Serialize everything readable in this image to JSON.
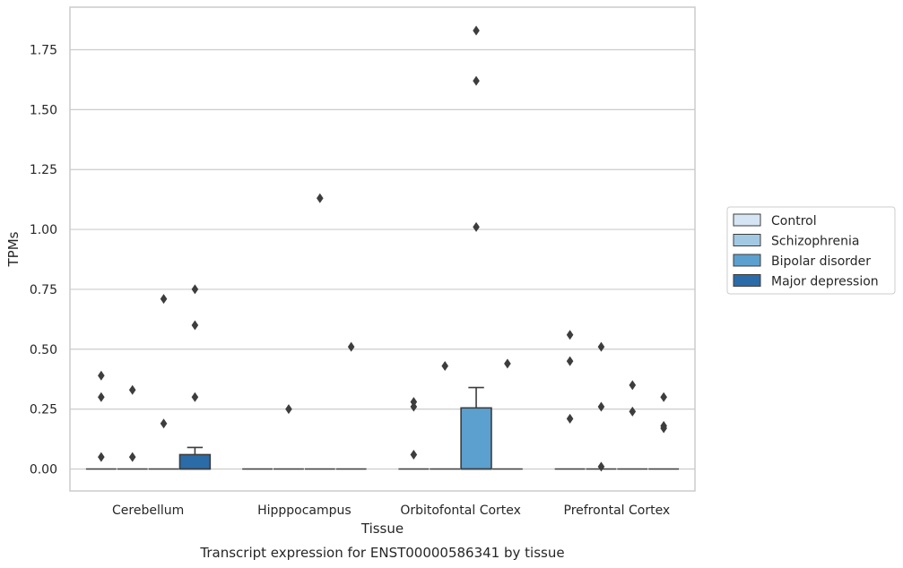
{
  "chart_data": {
    "type": "box",
    "caption": "Transcript expression for ENST00000586341 by tissue",
    "xlabel": "Tissue",
    "ylabel": "TPMs",
    "ylim": [
      -0.09,
      1.92
    ],
    "yticks": [
      0.0,
      0.25,
      0.5,
      0.75,
      1.0,
      1.25,
      1.5,
      1.75
    ],
    "ytick_labels": [
      "0.00",
      "0.25",
      "0.50",
      "0.75",
      "1.00",
      "1.25",
      "1.50",
      "1.75"
    ],
    "grid": "horizontal",
    "legend_position": "right",
    "categories": [
      "Cerebellum",
      "Hipppocampus",
      "Orbitofontal Cortex",
      "Prefrontal Cortex"
    ],
    "series": [
      {
        "name": "Control",
        "color": "#d6e5f4",
        "boxes": [
          {
            "q1": 0,
            "median": 0,
            "q3": 0,
            "whisker_low": 0,
            "whisker_high": 0,
            "outliers": [
              0.39,
              0.3,
              0.05
            ]
          },
          {
            "q1": 0,
            "median": 0,
            "q3": 0,
            "whisker_low": 0,
            "whisker_high": 0,
            "outliers": []
          },
          {
            "q1": 0,
            "median": 0,
            "q3": 0,
            "whisker_low": 0,
            "whisker_high": 0,
            "outliers": [
              0.28,
              0.26,
              0.06
            ]
          },
          {
            "q1": 0,
            "median": 0,
            "q3": 0,
            "whisker_low": 0,
            "whisker_high": 0,
            "outliers": [
              0.56,
              0.45,
              0.21
            ]
          }
        ]
      },
      {
        "name": "Schizophrenia",
        "color": "#a3c9e2",
        "boxes": [
          {
            "q1": 0,
            "median": 0,
            "q3": 0,
            "whisker_low": 0,
            "whisker_high": 0,
            "outliers": [
              0.33,
              0.05
            ]
          },
          {
            "q1": 0,
            "median": 0,
            "q3": 0,
            "whisker_low": 0,
            "whisker_high": 0,
            "outliers": [
              0.25
            ]
          },
          {
            "q1": 0,
            "median": 0,
            "q3": 0,
            "whisker_low": 0,
            "whisker_high": 0,
            "outliers": [
              0.43
            ]
          },
          {
            "q1": 0,
            "median": 0,
            "q3": 0,
            "whisker_low": 0,
            "whisker_high": 0,
            "outliers": [
              0.51,
              0.26,
              0.01
            ]
          }
        ]
      },
      {
        "name": "Bipolar disorder",
        "color": "#5ba0cf",
        "boxes": [
          {
            "q1": 0,
            "median": 0,
            "q3": 0,
            "whisker_low": 0,
            "whisker_high": 0,
            "outliers": [
              0.71,
              0.19
            ]
          },
          {
            "q1": 0,
            "median": 0,
            "q3": 0,
            "whisker_low": 0,
            "whisker_high": 0,
            "outliers": [
              1.13
            ]
          },
          {
            "q1": 0,
            "median": 0,
            "q3": 0.255,
            "whisker_low": 0,
            "whisker_high": 0.34,
            "outliers": [
              1.83,
              1.62,
              1.01
            ]
          },
          {
            "q1": 0,
            "median": 0,
            "q3": 0,
            "whisker_low": 0,
            "whisker_high": 0,
            "outliers": [
              0.35,
              0.24
            ]
          }
        ]
      },
      {
        "name": "Major depression",
        "color": "#2b6ba7",
        "boxes": [
          {
            "q1": 0,
            "median": 0,
            "q3": 0.06,
            "whisker_low": 0,
            "whisker_high": 0.09,
            "outliers": [
              0.75,
              0.6,
              0.3
            ]
          },
          {
            "q1": 0,
            "median": 0,
            "q3": 0,
            "whisker_low": 0,
            "whisker_high": 0,
            "outliers": [
              0.51
            ]
          },
          {
            "q1": 0,
            "median": 0,
            "q3": 0,
            "whisker_low": 0,
            "whisker_high": 0,
            "outliers": [
              0.44
            ]
          },
          {
            "q1": 0,
            "median": 0,
            "q3": 0,
            "whisker_low": 0,
            "whisker_high": 0,
            "outliers": [
              0.3,
              0.18,
              0.17
            ]
          }
        ]
      }
    ]
  }
}
